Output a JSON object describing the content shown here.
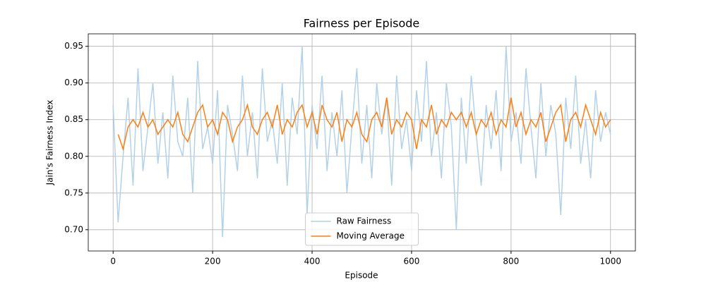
{
  "chart_data": {
    "type": "line",
    "title": "Fairness per Episode",
    "x_label": "Episode",
    "y_label": "Jain's Fairness Index",
    "x": [
      0,
      10,
      20,
      30,
      40,
      50,
      60,
      70,
      80,
      90,
      100,
      110,
      120,
      130,
      140,
      150,
      160,
      170,
      180,
      190,
      200,
      210,
      220,
      230,
      240,
      250,
      260,
      270,
      280,
      290,
      300,
      310,
      320,
      330,
      340,
      350,
      360,
      370,
      380,
      390,
      400,
      410,
      420,
      430,
      440,
      450,
      460,
      470,
      480,
      490,
      500,
      510,
      520,
      530,
      540,
      550,
      560,
      570,
      580,
      590,
      600,
      610,
      620,
      630,
      640,
      650,
      660,
      670,
      680,
      690,
      700,
      710,
      720,
      730,
      740,
      750,
      760,
      770,
      780,
      790,
      800,
      810,
      820,
      830,
      840,
      850,
      860,
      870,
      880,
      890,
      900,
      910,
      920,
      930,
      940,
      950,
      960,
      970,
      980,
      990,
      1000
    ],
    "series": [
      {
        "name": "Raw Fairness",
        "color": "#b3d1e7",
        "values": [
          0.87,
          0.71,
          0.8,
          0.88,
          0.76,
          0.92,
          0.78,
          0.84,
          0.9,
          0.79,
          0.86,
          0.77,
          0.91,
          0.82,
          0.8,
          0.88,
          0.75,
          0.93,
          0.81,
          0.84,
          0.79,
          0.89,
          0.69,
          0.87,
          0.83,
          0.78,
          0.91,
          0.8,
          0.86,
          0.77,
          0.92,
          0.82,
          0.85,
          0.79,
          0.9,
          0.76,
          0.88,
          0.83,
          0.95,
          0.72,
          0.87,
          0.81,
          0.91,
          0.78,
          0.86,
          0.8,
          0.89,
          0.75,
          0.84,
          0.92,
          0.79,
          0.87,
          0.77,
          0.9,
          0.83,
          0.88,
          0.76,
          0.91,
          0.81,
          0.85,
          0.78,
          0.89,
          0.82,
          0.93,
          0.8,
          0.86,
          0.77,
          0.9,
          0.84,
          0.7,
          0.88,
          0.79,
          0.91,
          0.83,
          0.76,
          0.87,
          0.81,
          0.89,
          0.78,
          0.95,
          0.82,
          0.86,
          0.79,
          0.92,
          0.84,
          0.77,
          0.9,
          0.8,
          0.87,
          0.83,
          0.72,
          0.88,
          0.81,
          0.91,
          0.79,
          0.85,
          0.77,
          0.89,
          0.82,
          0.86,
          0.83
        ]
      },
      {
        "name": "Moving Average",
        "color": "#ff7f0e",
        "values": [
          null,
          0.83,
          0.81,
          0.84,
          0.85,
          0.84,
          0.86,
          0.84,
          0.85,
          0.83,
          0.84,
          0.85,
          0.84,
          0.86,
          0.83,
          0.82,
          0.84,
          0.86,
          0.87,
          0.84,
          0.85,
          0.83,
          0.86,
          0.85,
          0.82,
          0.84,
          0.85,
          0.87,
          0.84,
          0.83,
          0.85,
          0.86,
          0.84,
          0.87,
          0.83,
          0.85,
          0.84,
          0.86,
          0.87,
          0.84,
          0.86,
          0.83,
          0.87,
          0.85,
          0.84,
          0.86,
          0.82,
          0.85,
          0.84,
          0.86,
          0.83,
          0.82,
          0.85,
          0.86,
          0.84,
          0.88,
          0.83,
          0.85,
          0.84,
          0.86,
          0.85,
          0.81,
          0.85,
          0.84,
          0.87,
          0.83,
          0.85,
          0.84,
          0.86,
          0.85,
          0.86,
          0.84,
          0.86,
          0.83,
          0.85,
          0.84,
          0.86,
          0.83,
          0.85,
          0.84,
          0.88,
          0.84,
          0.86,
          0.83,
          0.85,
          0.84,
          0.86,
          0.82,
          0.84,
          0.86,
          0.87,
          0.82,
          0.85,
          0.86,
          0.84,
          0.87,
          0.85,
          0.83,
          0.86,
          0.84,
          0.85
        ]
      }
    ],
    "xlim": [
      -50,
      1050
    ],
    "ylim": [
      0.671,
      0.967
    ],
    "xticks": [
      0,
      200,
      400,
      600,
      800,
      1000
    ],
    "yticks": [
      {
        "value": 0.7,
        "label": "0.70"
      },
      0.75,
      {
        "value": 0.8,
        "label": "0.80"
      },
      0.85,
      {
        "value": 0.9,
        "label": "0.90"
      },
      0.95
    ],
    "grid": true,
    "legend": "lower center"
  }
}
